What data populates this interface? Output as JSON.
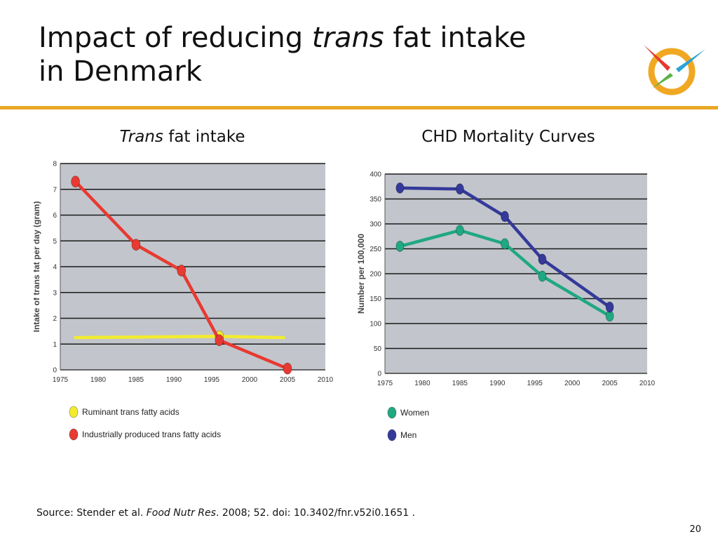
{
  "slide": {
    "title_part1": "Impact of reducing ",
    "title_em": "trans",
    "title_part2": " fat intake",
    "title_line2": "in Denmark",
    "page_number": "20",
    "accent_color": "#e9a825"
  },
  "headings": {
    "left_em": "Trans",
    "left_rest": " fat intake",
    "right": "CHD Mortality Curves"
  },
  "source": {
    "prefix": "Source: Stender et al. ",
    "journal": "Food Nutr Res",
    "suffix": ". 2008; 52. doi: 10.3402/fnr.v52i0.1651 ."
  },
  "chart_data": [
    {
      "type": "line",
      "ylabel": "Intake of trans fat per day (gram)",
      "xlim": [
        1975,
        2010
      ],
      "ylim": [
        0,
        8
      ],
      "x_ticks": [
        "1975",
        "1980",
        "1985",
        "1990",
        "1995",
        "2000",
        "2005",
        "2010"
      ],
      "y_ticks": [
        "0",
        "1",
        "2",
        "3",
        "4",
        "5",
        "6",
        "7",
        "8"
      ],
      "grid": true,
      "legend_position": "below",
      "series": [
        {
          "name": "Industrially produced trans fatty acids",
          "color": "#e83a32",
          "x": [
            1977,
            1985,
            1991,
            1996,
            2005
          ],
          "y": [
            7.3,
            4.85,
            3.85,
            1.15,
            0.05
          ],
          "markers": true
        },
        {
          "name": "Ruminant trans fatty acids",
          "color": "#f3ec2e",
          "x": [
            1977,
            1996,
            2004.5
          ],
          "y": [
            1.25,
            1.3,
            1.25
          ],
          "markers_at": [
            1
          ]
        }
      ]
    },
    {
      "type": "line",
      "ylabel": "Number per 100,000",
      "xlim": [
        1975,
        2010
      ],
      "ylim": [
        0,
        400
      ],
      "x_ticks": [
        "1975",
        "1980",
        "1985",
        "1990",
        "1995",
        "2000",
        "2005",
        "2010"
      ],
      "y_ticks": [
        "0",
        "50",
        "100",
        "150",
        "200",
        "250",
        "300",
        "350",
        "400"
      ],
      "grid": true,
      "legend_position": "below",
      "series": [
        {
          "name": "Women",
          "color": "#20a882",
          "x": [
            1977,
            1985,
            1991,
            1996,
            2005
          ],
          "y": [
            255,
            287,
            260,
            195,
            115
          ],
          "markers": true
        },
        {
          "name": "Men",
          "color": "#34399a",
          "x": [
            1977,
            1985,
            1991,
            1996,
            2005
          ],
          "y": [
            372,
            370,
            315,
            229,
            133
          ],
          "markers": true
        }
      ]
    }
  ]
}
